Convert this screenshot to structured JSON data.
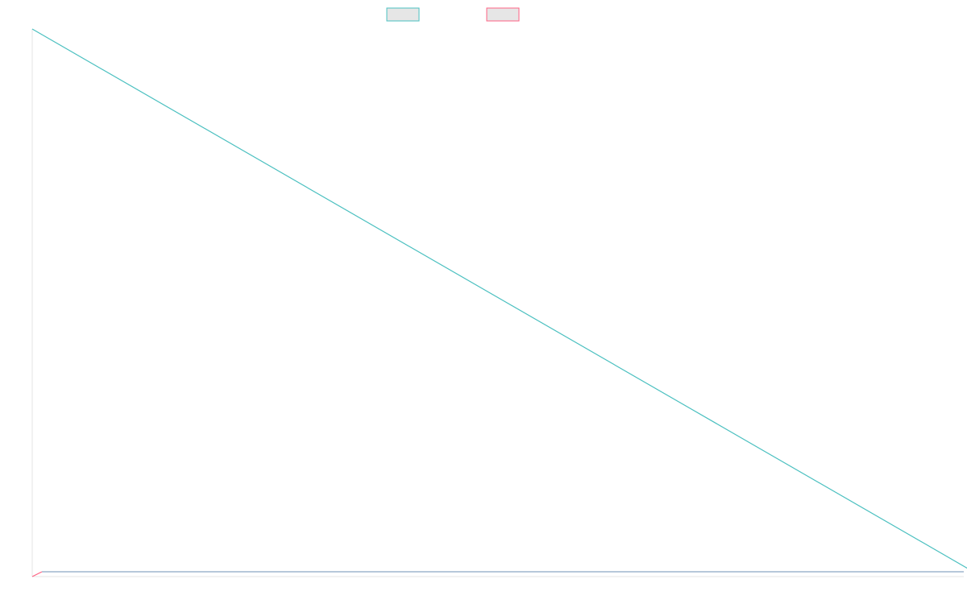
{
  "chart_data": {
    "type": "line",
    "title": "",
    "xlabel": "",
    "ylabel": "",
    "grid": false,
    "legend": {
      "position": "top-center",
      "entries": [
        {
          "label": "",
          "color": "#4bc0c0",
          "fill": "#e6e6e6"
        },
        {
          "label": "",
          "color": "#ff6384",
          "fill": "#e6e6e6"
        }
      ]
    },
    "x": [
      0,
      1
    ],
    "ylim": [
      0,
      1
    ],
    "series": [
      {
        "color": "#4bc0c0",
        "values": [
          1,
          0
        ]
      },
      {
        "color": "#ff6384",
        "values": [
          0,
          0
        ]
      }
    ]
  },
  "colors": {
    "axis": "#e6e6e6",
    "baseline": "#8aa6c4"
  }
}
